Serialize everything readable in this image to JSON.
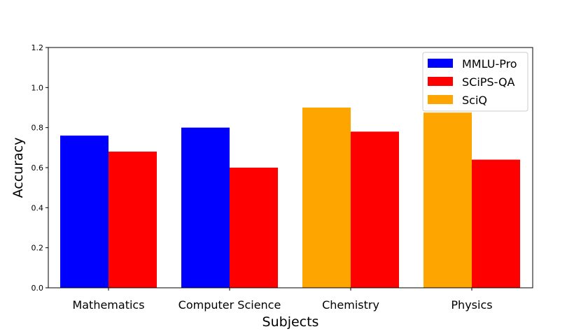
{
  "chart_data": {
    "type": "bar",
    "title": "",
    "xlabel": "Subjects",
    "ylabel": "Accuracy",
    "categories": [
      "Mathematics",
      "Computer Science",
      "Chemistry",
      "Physics"
    ],
    "ylim": [
      0,
      1.2
    ],
    "yticks": [
      "0.0",
      "0.2",
      "0.4",
      "0.6",
      "0.8",
      "1.0",
      "1.2"
    ],
    "grid": false,
    "legend_position": "top-right",
    "bars": [
      {
        "category": "Mathematics",
        "source": "MMLU-Pro",
        "value": 0.76
      },
      {
        "category": "Mathematics",
        "source": "SCiPS-QA",
        "value": 0.68
      },
      {
        "category": "Computer Science",
        "source": "MMLU-Pro",
        "value": 0.8
      },
      {
        "category": "Computer Science",
        "source": "SCiPS-QA",
        "value": 0.6
      },
      {
        "category": "Chemistry",
        "source": "SciQ",
        "value": 0.9
      },
      {
        "category": "Chemistry",
        "source": "SCiPS-QA",
        "value": 0.78
      },
      {
        "category": "Physics",
        "source": "SciQ",
        "value": 0.875
      },
      {
        "category": "Physics",
        "source": "SCiPS-QA",
        "value": 0.64
      }
    ],
    "legend": [
      {
        "name": "MMLU-Pro",
        "color": "#0000ff"
      },
      {
        "name": "SCiPS-QA",
        "color": "#ff0000"
      },
      {
        "name": "SciQ",
        "color": "#ffa500"
      }
    ]
  }
}
